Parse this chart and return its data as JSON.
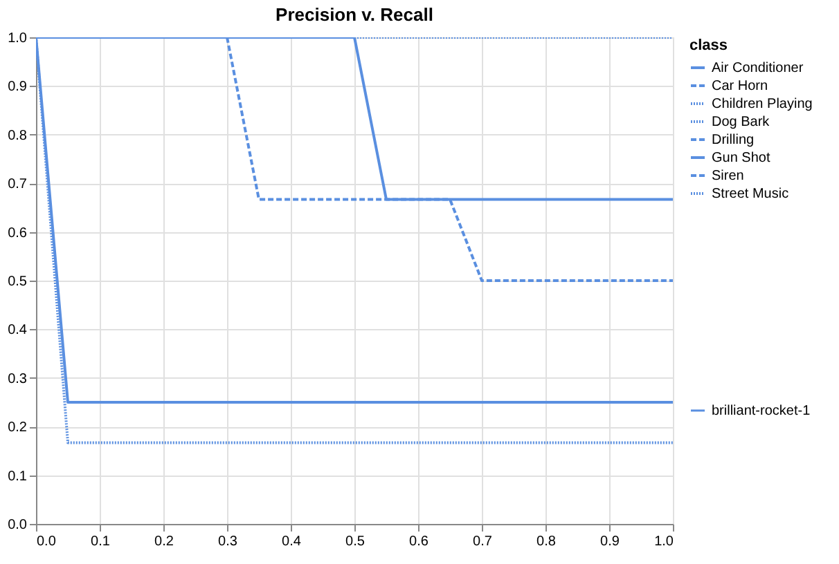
{
  "chart_data": {
    "type": "line",
    "title": "Precision v. Recall",
    "legend_title": "class",
    "legend": "right",
    "annotations": [
      "brilliant-rocket-1"
    ],
    "xlim": [
      0,
      1
    ],
    "xticks": [
      {
        "value": 0,
        "label": "0.0"
      },
      0.1,
      0.2,
      0.3,
      0.4,
      0.5,
      0.6,
      0.7,
      0.8,
      0.9,
      {
        "value": 1,
        "label": "1.0"
      }
    ],
    "ylim": [
      0,
      1
    ],
    "yticks": [
      {
        "value": 0,
        "label": "0.0"
      },
      0.1,
      0.2,
      0.3,
      0.4,
      0.5,
      0.6,
      0.7,
      0.8,
      0.9,
      {
        "value": 1,
        "label": "1.0"
      }
    ],
    "grid": true,
    "series": [
      {
        "name": "Air Conditioner",
        "color": "#5a8fe0",
        "line_style": "solid",
        "x": [
          0,
          0.05,
          1
        ],
        "values": [
          1,
          0.25,
          0.25
        ]
      },
      {
        "name": "Car Horn",
        "color": "#5a8fe0",
        "line_style": "dashed",
        "x": [
          0,
          0.3,
          0.35,
          0.65,
          0.7,
          1
        ],
        "values": [
          1,
          1,
          0.667,
          0.667,
          0.5,
          0.5
        ]
      },
      {
        "name": "Children Playing",
        "color": "#5a8fe0",
        "line_style": "dotted",
        "x": [
          0,
          0.05,
          1
        ],
        "values": [
          1,
          0.167,
          0.167
        ]
      },
      {
        "name": "Dog Bark",
        "color": "#5a8fe0",
        "line_style": "dotted",
        "x": [
          0,
          1
        ],
        "values": [
          1,
          1
        ]
      },
      {
        "name": "Drilling",
        "color": "#5a8fe0",
        "line_style": "dashed"
      },
      {
        "name": "Gun Shot",
        "color": "#5a8fe0",
        "line_style": "solid",
        "x": [
          0,
          0.5,
          0.55,
          1
        ],
        "values": [
          1,
          1,
          0.667,
          0.667
        ]
      },
      {
        "name": "Siren",
        "color": "#5a8fe0",
        "line_style": "dashed"
      },
      {
        "name": "Street Music",
        "color": "#5a8fe0",
        "line_style": "dotted",
        "x": [
          0,
          1
        ],
        "values": [
          1,
          1
        ]
      }
    ]
  }
}
